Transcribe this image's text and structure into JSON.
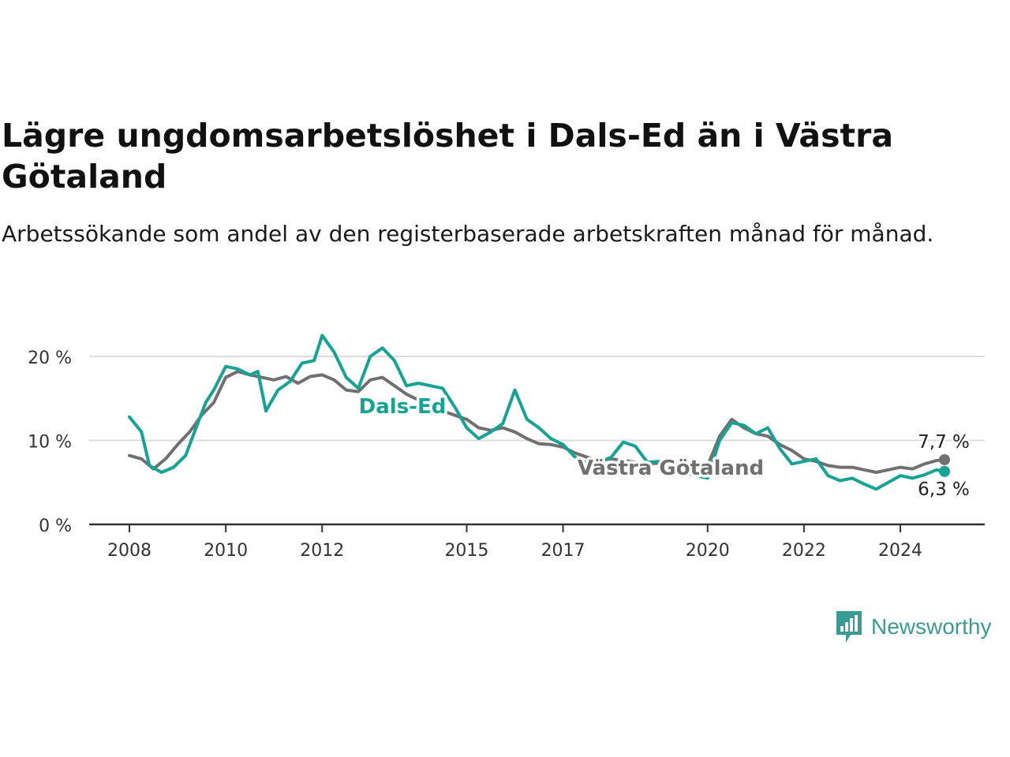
{
  "header": {
    "title": "Lägre ungdomsarbetslöshet i Dals-Ed än i Västra Götaland",
    "subtitle": "Arbetssökande som andel av den registerbaserade arbetskraften månad för månad."
  },
  "brand": {
    "name": "Newsworthy",
    "color": "#3a9b92"
  },
  "chart_data": {
    "type": "line",
    "title": "Lägre ungdomsarbetslöshet i Dals-Ed än i Västra Götaland",
    "subtitle": "Arbetssökande som andel av den registerbaserade arbetskraften månad för månad.",
    "xlabel": "",
    "ylabel": "",
    "x_ticks": [
      "2008",
      "2010",
      "2012",
      "2015",
      "2017",
      "2020",
      "2022",
      "2024"
    ],
    "y_ticks": [
      "0 %",
      "10 %",
      "20 %"
    ],
    "ylim": [
      0,
      23
    ],
    "grid": "horizontal",
    "series": [
      {
        "name": "Dals-Ed",
        "color": "#14a394",
        "end_label": "6,3 %",
        "points": [
          [
            "2008-01",
            12.8
          ],
          [
            "2008-04",
            11
          ],
          [
            "2008-06",
            7
          ],
          [
            "2008-09",
            6.2
          ],
          [
            "2008-12",
            6.8
          ],
          [
            "2009-03",
            8.2
          ],
          [
            "2009-06",
            12
          ],
          [
            "2009-08",
            14.5
          ],
          [
            "2009-10",
            16
          ],
          [
            "2010-01",
            18.8
          ],
          [
            "2010-04",
            18.5
          ],
          [
            "2010-07",
            17.8
          ],
          [
            "2010-09",
            18.2
          ],
          [
            "2010-11",
            13.5
          ],
          [
            "2011-02",
            16
          ],
          [
            "2011-05",
            17
          ],
          [
            "2011-08",
            19.2
          ],
          [
            "2011-11",
            19.5
          ],
          [
            "2012-01",
            22.5
          ],
          [
            "2012-04",
            20.5
          ],
          [
            "2012-07",
            17.5
          ],
          [
            "2012-10",
            16.2
          ],
          [
            "2013-01",
            20
          ],
          [
            "2013-04",
            21
          ],
          [
            "2013-07",
            19.5
          ],
          [
            "2013-10",
            16.5
          ],
          [
            "2014-01",
            16.8
          ],
          [
            "2014-04",
            16.5
          ],
          [
            "2014-07",
            16.2
          ],
          [
            "2014-10",
            14
          ],
          [
            "2015-01",
            11.5
          ],
          [
            "2015-04",
            10.2
          ],
          [
            "2015-07",
            11
          ],
          [
            "2015-10",
            12
          ],
          [
            "2016-01",
            16
          ],
          [
            "2016-04",
            12.5
          ],
          [
            "2016-07",
            11.5
          ],
          [
            "2016-10",
            10.2
          ],
          [
            "2017-01",
            9.5
          ],
          [
            "2017-04",
            8
          ],
          [
            "2017-07",
            7.3
          ],
          [
            "2017-10",
            7.4
          ],
          [
            "2018-01",
            8
          ],
          [
            "2018-04",
            9.8
          ],
          [
            "2018-07",
            9.3
          ],
          [
            "2018-10",
            7.4
          ],
          [
            "2019-01",
            7.5
          ],
          [
            "2019-04",
            7
          ],
          [
            "2019-07",
            6.2
          ],
          [
            "2019-10",
            5.8
          ],
          [
            "2020-01",
            5.5
          ],
          [
            "2020-04",
            10
          ],
          [
            "2020-07",
            12.1
          ],
          [
            "2020-10",
            11.8
          ],
          [
            "2021-01",
            10.8
          ],
          [
            "2021-04",
            11.5
          ],
          [
            "2021-07",
            9
          ],
          [
            "2021-10",
            7.2
          ],
          [
            "2022-01",
            7.5
          ],
          [
            "2022-04",
            7.8
          ],
          [
            "2022-07",
            5.8
          ],
          [
            "2022-10",
            5.2
          ],
          [
            "2023-01",
            5.5
          ],
          [
            "2023-04",
            4.8
          ],
          [
            "2023-07",
            4.2
          ],
          [
            "2023-10",
            5
          ],
          [
            "2024-01",
            5.8
          ],
          [
            "2024-04",
            5.5
          ],
          [
            "2024-07",
            5.9
          ],
          [
            "2024-10",
            6.5
          ],
          [
            "2024-12",
            6.3
          ]
        ]
      },
      {
        "name": "Västra Götaland",
        "color": "#707070",
        "end_label": "7,7 %",
        "points": [
          [
            "2008-01",
            8.2
          ],
          [
            "2008-04",
            7.8
          ],
          [
            "2008-07",
            6.6
          ],
          [
            "2008-10",
            7.8
          ],
          [
            "2009-01",
            9.5
          ],
          [
            "2009-04",
            11
          ],
          [
            "2009-07",
            13
          ],
          [
            "2009-10",
            14.5
          ],
          [
            "2010-01",
            17.5
          ],
          [
            "2010-04",
            18.2
          ],
          [
            "2010-07",
            17.8
          ],
          [
            "2010-10",
            17.5
          ],
          [
            "2011-01",
            17.2
          ],
          [
            "2011-04",
            17.6
          ],
          [
            "2011-07",
            16.8
          ],
          [
            "2011-10",
            17.6
          ],
          [
            "2012-01",
            17.8
          ],
          [
            "2012-04",
            17.2
          ],
          [
            "2012-07",
            16
          ],
          [
            "2012-10",
            15.8
          ],
          [
            "2013-01",
            17.2
          ],
          [
            "2013-04",
            17.5
          ],
          [
            "2013-07",
            16.5
          ],
          [
            "2013-10",
            15.5
          ],
          [
            "2014-01",
            14.8
          ],
          [
            "2014-04",
            14.2
          ],
          [
            "2014-07",
            13.5
          ],
          [
            "2014-10",
            13
          ],
          [
            "2015-01",
            12.5
          ],
          [
            "2015-04",
            11.5
          ],
          [
            "2015-07",
            11.2
          ],
          [
            "2015-10",
            11.5
          ],
          [
            "2016-01",
            11
          ],
          [
            "2016-04",
            10.2
          ],
          [
            "2016-07",
            9.6
          ],
          [
            "2016-10",
            9.5
          ],
          [
            "2017-01",
            9.2
          ],
          [
            "2017-04",
            8.5
          ],
          [
            "2017-07",
            8
          ],
          [
            "2017-10",
            7.6
          ],
          [
            "2018-01",
            7.8
          ],
          [
            "2018-04",
            7.6
          ],
          [
            "2018-07",
            7.4
          ],
          [
            "2018-10",
            7.2
          ],
          [
            "2019-01",
            7.3
          ],
          [
            "2019-04",
            7.2
          ],
          [
            "2019-07",
            7.2
          ],
          [
            "2019-10",
            7
          ],
          [
            "2020-01",
            7
          ],
          [
            "2020-04",
            10.5
          ],
          [
            "2020-07",
            12.5
          ],
          [
            "2020-10",
            11.5
          ],
          [
            "2021-01",
            10.8
          ],
          [
            "2021-04",
            10.5
          ],
          [
            "2021-07",
            9.5
          ],
          [
            "2021-10",
            8.8
          ],
          [
            "2022-01",
            7.8
          ],
          [
            "2022-04",
            7.5
          ],
          [
            "2022-07",
            7
          ],
          [
            "2022-10",
            6.8
          ],
          [
            "2023-01",
            6.8
          ],
          [
            "2023-04",
            6.5
          ],
          [
            "2023-07",
            6.2
          ],
          [
            "2023-10",
            6.5
          ],
          [
            "2024-01",
            6.8
          ],
          [
            "2024-04",
            6.6
          ],
          [
            "2024-07",
            7.2
          ],
          [
            "2024-10",
            7.6
          ],
          [
            "2024-12",
            7.7
          ]
        ]
      }
    ]
  }
}
